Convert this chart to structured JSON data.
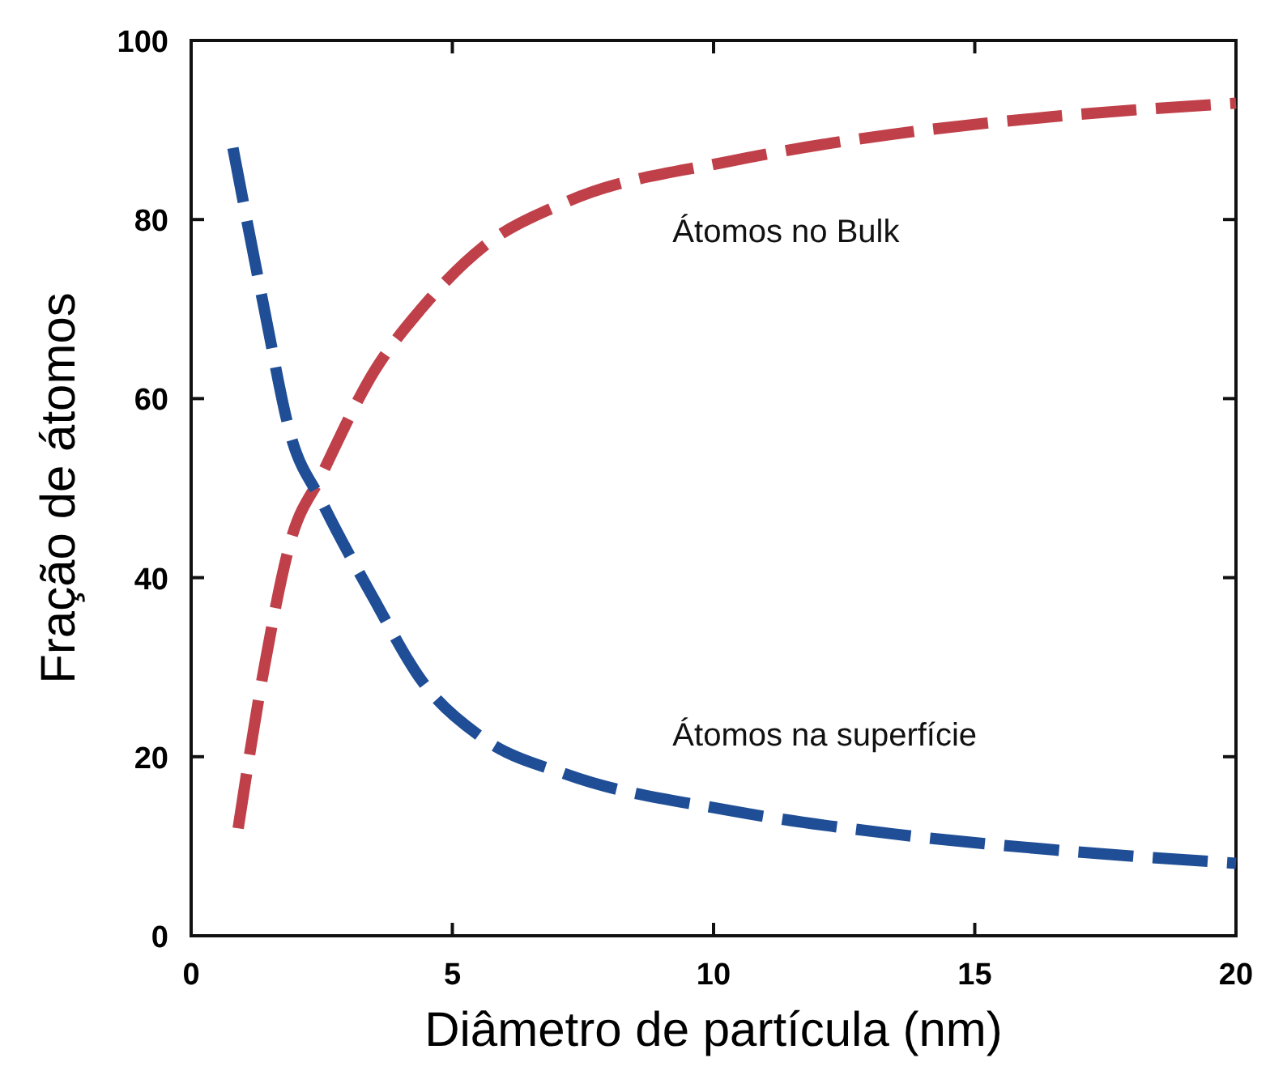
{
  "chart_data": {
    "type": "line",
    "xlabel": "Diâmetro de partícula (nm)",
    "ylabel": "Fração de átomos",
    "xlim": [
      0,
      20
    ],
    "ylim": [
      0,
      100
    ],
    "xticks": [
      0,
      5,
      10,
      15,
      20
    ],
    "yticks": [
      0,
      20,
      40,
      60,
      80,
      100
    ],
    "grid": false,
    "line_style": "dashed",
    "marker": "none",
    "series": [
      {
        "name": "Átomos no Bulk",
        "color": "#c0404a",
        "x": [
          0.9,
          1.4,
          1.9,
          2.5,
          3.5,
          4.4,
          5.6,
          7.2,
          10.3,
          13.4,
          16.5,
          20
        ],
        "values": [
          12,
          30,
          44,
          51.5,
          63,
          70,
          77,
          82,
          86.5,
          89.5,
          91.5,
          93
        ]
      },
      {
        "name": "Átomos na superfície",
        "color": "#1f4e96",
        "x": [
          0.8,
          1.4,
          1.9,
          2.5,
          3.5,
          4.4,
          5.6,
          7.2,
          10.3,
          13.4,
          16.5,
          20
        ],
        "values": [
          88,
          70,
          56,
          48.5,
          37.6,
          28.6,
          22,
          18,
          14,
          11.4,
          9.6,
          8.1
        ]
      }
    ]
  }
}
